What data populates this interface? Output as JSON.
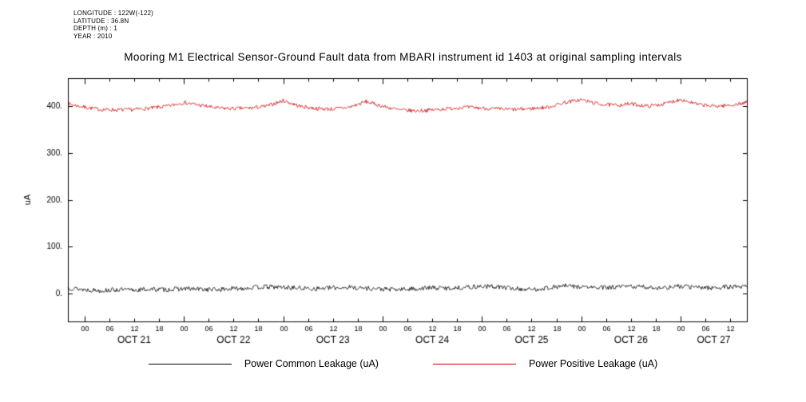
{
  "meta": {
    "longitude": "LONGITUDE : 122W(-122)",
    "latitude": "LATITUDE : 36.8N",
    "depth": "DEPTH (m) : 1",
    "year": "YEAR : 2010"
  },
  "chart_data": {
    "type": "line",
    "title": "Mooring M1 Electrical Sensor-Ground Fault data from MBARI instrument id 1403 at original sampling intervals",
    "xlabel": "",
    "ylabel": "uA",
    "ylim": [
      -60,
      460
    ],
    "yticks": [
      {
        "value": 0,
        "label": "0."
      },
      {
        "value": 100,
        "label": "100."
      },
      {
        "value": 200,
        "label": "200."
      },
      {
        "value": 300,
        "label": "300."
      },
      {
        "value": 400,
        "label": "400."
      }
    ],
    "x_unit": "hours from OCT 21 00:00",
    "x_range_hours": [
      -4,
      160
    ],
    "hour_ticks": {
      "start": 0,
      "end": 156,
      "step": 6
    },
    "hour_tick_labels": [
      "00",
      "06",
      "12",
      "18"
    ],
    "day_labels": [
      {
        "label": "OCT 21",
        "center_hour": 12
      },
      {
        "label": "OCT 22",
        "center_hour": 36
      },
      {
        "label": "OCT 23",
        "center_hour": 60
      },
      {
        "label": "OCT 24",
        "center_hour": 84
      },
      {
        "label": "OCT 25",
        "center_hour": 108
      },
      {
        "label": "OCT 26",
        "center_hour": 132
      },
      {
        "label": "OCT 27",
        "center_hour": 152
      }
    ],
    "grid": false,
    "legend_position": "bottom",
    "trend_step_hours": 4,
    "series": [
      {
        "name": "Power Common Leakage (uA)",
        "color": "#000000",
        "noise_amplitude": 5,
        "seed": 13,
        "values": [
          12,
          8,
          6,
          8,
          7,
          9,
          8,
          10,
          9,
          8,
          10,
          12,
          14,
          13,
          11,
          10,
          12,
          13,
          11,
          9,
          8,
          10,
          12,
          11,
          13,
          15,
          14,
          10,
          8,
          12,
          16,
          14,
          12,
          13,
          15,
          13,
          12,
          15,
          13,
          12,
          14,
          15
        ]
      },
      {
        "name": "Power Positive Leakage (uA)",
        "color": "#cc0000",
        "noise_amplitude": 4,
        "seed": 7,
        "values": [
          405,
          398,
          393,
          392,
          393,
          396,
          400,
          408,
          402,
          396,
          395,
          396,
          400,
          412,
          400,
          395,
          394,
          398,
          410,
          400,
          392,
          390,
          392,
          395,
          398,
          396,
          394,
          393,
          395,
          398,
          408,
          414,
          405,
          402,
          405,
          400,
          405,
          415,
          404,
          400,
          402,
          408
        ]
      }
    ]
  }
}
